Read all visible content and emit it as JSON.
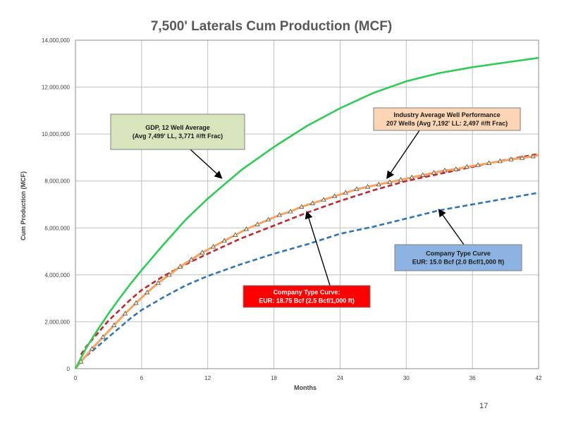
{
  "page_number": "17",
  "chart_data": {
    "type": "line",
    "title": "7,500' Laterals Cum Production (MCF)",
    "xlabel": "Months",
    "ylabel": "Cum Production (MCF)",
    "xlim": [
      0,
      42
    ],
    "ylim": [
      0,
      14000000
    ],
    "xticks": [
      0,
      6,
      12,
      18,
      24,
      30,
      36,
      42
    ],
    "yticks": [
      0,
      2000000,
      4000000,
      6000000,
      8000000,
      10000000,
      12000000,
      14000000
    ],
    "xtick_labels": [
      "0",
      "6",
      "12",
      "18",
      "24",
      "30",
      "36",
      "42"
    ],
    "ytick_labels": [
      "0",
      "2,000,000",
      "4,000,000",
      "6,000,000",
      "8,000,000",
      "10,000,000",
      "12,000,000",
      "14,000,000"
    ],
    "grid": true,
    "series": [
      {
        "id": "gdp",
        "style": "solid",
        "color": "#2ecc55",
        "x": [
          0,
          1,
          2,
          3,
          4,
          5,
          6,
          8,
          10,
          12,
          15,
          18,
          21,
          24,
          27,
          30,
          33,
          36,
          39,
          42
        ],
        "y": [
          0,
          900000,
          1650000,
          2350000,
          3000000,
          3620000,
          4200000,
          5300000,
          6350000,
          7250000,
          8450000,
          9450000,
          10350000,
          11100000,
          11750000,
          12250000,
          12600000,
          12850000,
          13050000,
          13250000
        ]
      },
      {
        "id": "industry",
        "style": "solid-markers",
        "color": "#f4a460",
        "x": [
          0,
          0.5,
          1.5,
          2.5,
          3.5,
          4.5,
          5.5,
          6.5,
          7.5,
          8.5,
          9.5,
          10.5,
          11.5,
          12.5,
          13.5,
          14.5,
          15.5,
          16.5,
          17.5,
          18.5,
          19.5,
          20.5,
          21.5,
          22.5,
          23.5,
          24.5,
          25.5,
          26.5,
          27.5,
          28.5,
          29.5,
          30.5,
          31.5,
          32.5,
          33.5,
          34.5,
          35.5,
          36.5,
          37.5,
          38.5,
          39.5,
          40.5,
          41.5,
          42
        ],
        "y": [
          0,
          300000,
          850000,
          1350000,
          1850000,
          2350000,
          2800000,
          3250000,
          3650000,
          4000000,
          4350000,
          4650000,
          4950000,
          5200000,
          5450000,
          5700000,
          5950000,
          6150000,
          6350000,
          6550000,
          6700000,
          6900000,
          7050000,
          7200000,
          7350000,
          7500000,
          7650000,
          7750000,
          7850000,
          7950000,
          8050000,
          8150000,
          8250000,
          8350000,
          8450000,
          8500000,
          8600000,
          8680000,
          8760000,
          8840000,
          8920000,
          8980000,
          9050000,
          9100000
        ]
      },
      {
        "id": "company-red",
        "style": "dashed",
        "color": "#c0282d",
        "x": [
          0.5,
          1,
          2,
          3,
          4,
          5,
          6,
          8,
          10,
          12,
          15,
          18,
          21,
          24,
          27,
          30,
          33,
          36,
          39,
          42
        ],
        "y": [
          600000,
          950000,
          1500000,
          2050000,
          2500000,
          2950000,
          3350000,
          3950000,
          4450000,
          4900000,
          5550000,
          6100000,
          6650000,
          7150000,
          7600000,
          8000000,
          8300000,
          8600000,
          8900000,
          9150000
        ]
      },
      {
        "id": "company-blue",
        "style": "dashed",
        "color": "#2e75b6",
        "x": [
          0.5,
          1,
          2,
          3,
          4,
          5,
          6,
          8,
          10,
          12,
          15,
          18,
          21,
          24,
          27,
          30,
          33,
          36,
          39,
          42
        ],
        "y": [
          300000,
          550000,
          950000,
          1350000,
          1750000,
          2150000,
          2500000,
          3050000,
          3550000,
          3950000,
          4450000,
          4900000,
          5300000,
          5750000,
          6050000,
          6400000,
          6750000,
          7000000,
          7250000,
          7500000
        ]
      }
    ],
    "annotations": [
      {
        "id": "gdp-box",
        "lines": [
          "GDP, 12 Well Average",
          "(Avg 7,499' LL, 3,771 #/ft Frac)"
        ],
        "fill": "#d8e4bc",
        "text_color": "#1a1a1a",
        "anchor": [
          13.2,
          8150000
        ]
      },
      {
        "id": "industry-box",
        "lines": [
          "Industry Average Well Performance",
          "207 Wells (Avg 7,192' LL: 2,497 #/ft Frac)"
        ],
        "fill": "#fcd5b4",
        "text_color": "#1a1a1a",
        "anchor": [
          28.3,
          8150000
        ]
      },
      {
        "id": "red-box",
        "lines": [
          "Company Type Curve:",
          "EUR: 18.75 Bcf (2.5 Bcf/1,000 ft)"
        ],
        "fill": "#ff0000",
        "text_color": "#ffffff",
        "anchor": [
          21,
          6650000
        ]
      },
      {
        "id": "blue-box",
        "lines": [
          "Company Type Curve",
          "EUR: 15.0 Bcf (2.0 Bcf/1,000 ft)"
        ],
        "fill": "#8db3e2",
        "text_color": "#1a1a1a",
        "anchor": [
          33,
          6750000
        ]
      }
    ]
  }
}
